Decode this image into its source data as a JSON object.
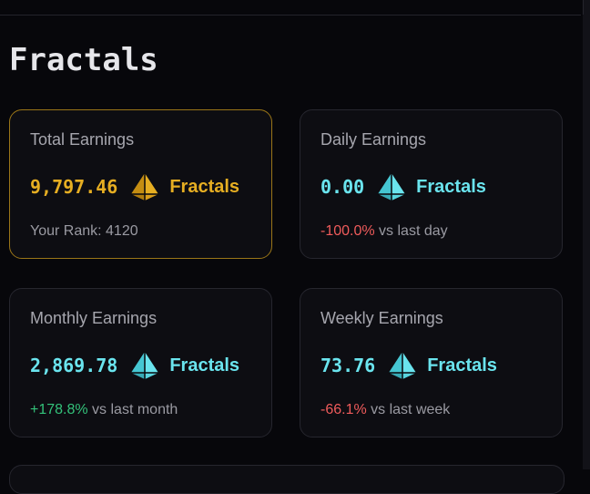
{
  "page": {
    "title": "Fractals"
  },
  "colors": {
    "gold": "#e6ae22",
    "cyan": "#6ae4ee",
    "negative": "#ef5b5b",
    "positive": "#33c27a"
  },
  "cards": {
    "total": {
      "label": "Total Earnings",
      "value": "9,797.46",
      "token": "Fractals",
      "token_icon": "fractal-token-icon-gold",
      "sub_text": "Your Rank: 4120"
    },
    "daily": {
      "label": "Daily Earnings",
      "value": "0.00",
      "token": "Fractals",
      "token_icon": "fractal-token-icon-cyan",
      "delta": "-100.0%",
      "delta_suffix": " vs last day"
    },
    "monthly": {
      "label": "Monthly Earnings",
      "value": "2,869.78",
      "token": "Fractals",
      "token_icon": "fractal-token-icon-cyan",
      "delta": "+178.8%",
      "delta_suffix": " vs last month"
    },
    "weekly": {
      "label": "Weekly Earnings",
      "value": "73.76",
      "token": "Fractals",
      "token_icon": "fractal-token-icon-cyan",
      "delta": "-66.1%",
      "delta_suffix": " vs last week"
    }
  }
}
